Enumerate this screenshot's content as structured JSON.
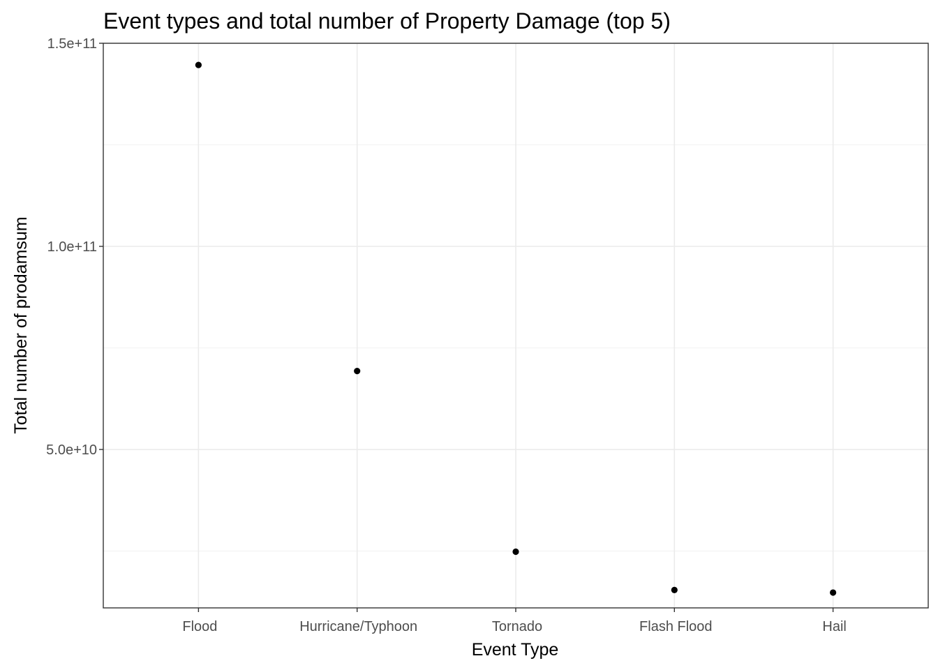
{
  "chart_data": {
    "type": "scatter",
    "title": "Event types and total number of Property Damage (top 5)",
    "xlabel": "Event Type",
    "ylabel": "Total number of prodamsum",
    "categories": [
      "Flood",
      "Hurricane/Typhoon",
      "Tornado",
      "Flash Flood",
      "Hail"
    ],
    "values": [
      144660000000,
      69310000000,
      24830000000,
      15400000000,
      14770000000
    ],
    "ylim": [
      11000000000,
      150000000000
    ],
    "yticks": [
      50000000000,
      100000000000,
      150000000000
    ],
    "ytick_labels": [
      "5.0e+10",
      "1.0e+11",
      "1.5e+11"
    ],
    "yminor_ticks": [
      25000000000,
      75000000000,
      125000000000
    ],
    "grid": true,
    "legend": "none",
    "theme": "bw",
    "point_color": "#000000"
  }
}
